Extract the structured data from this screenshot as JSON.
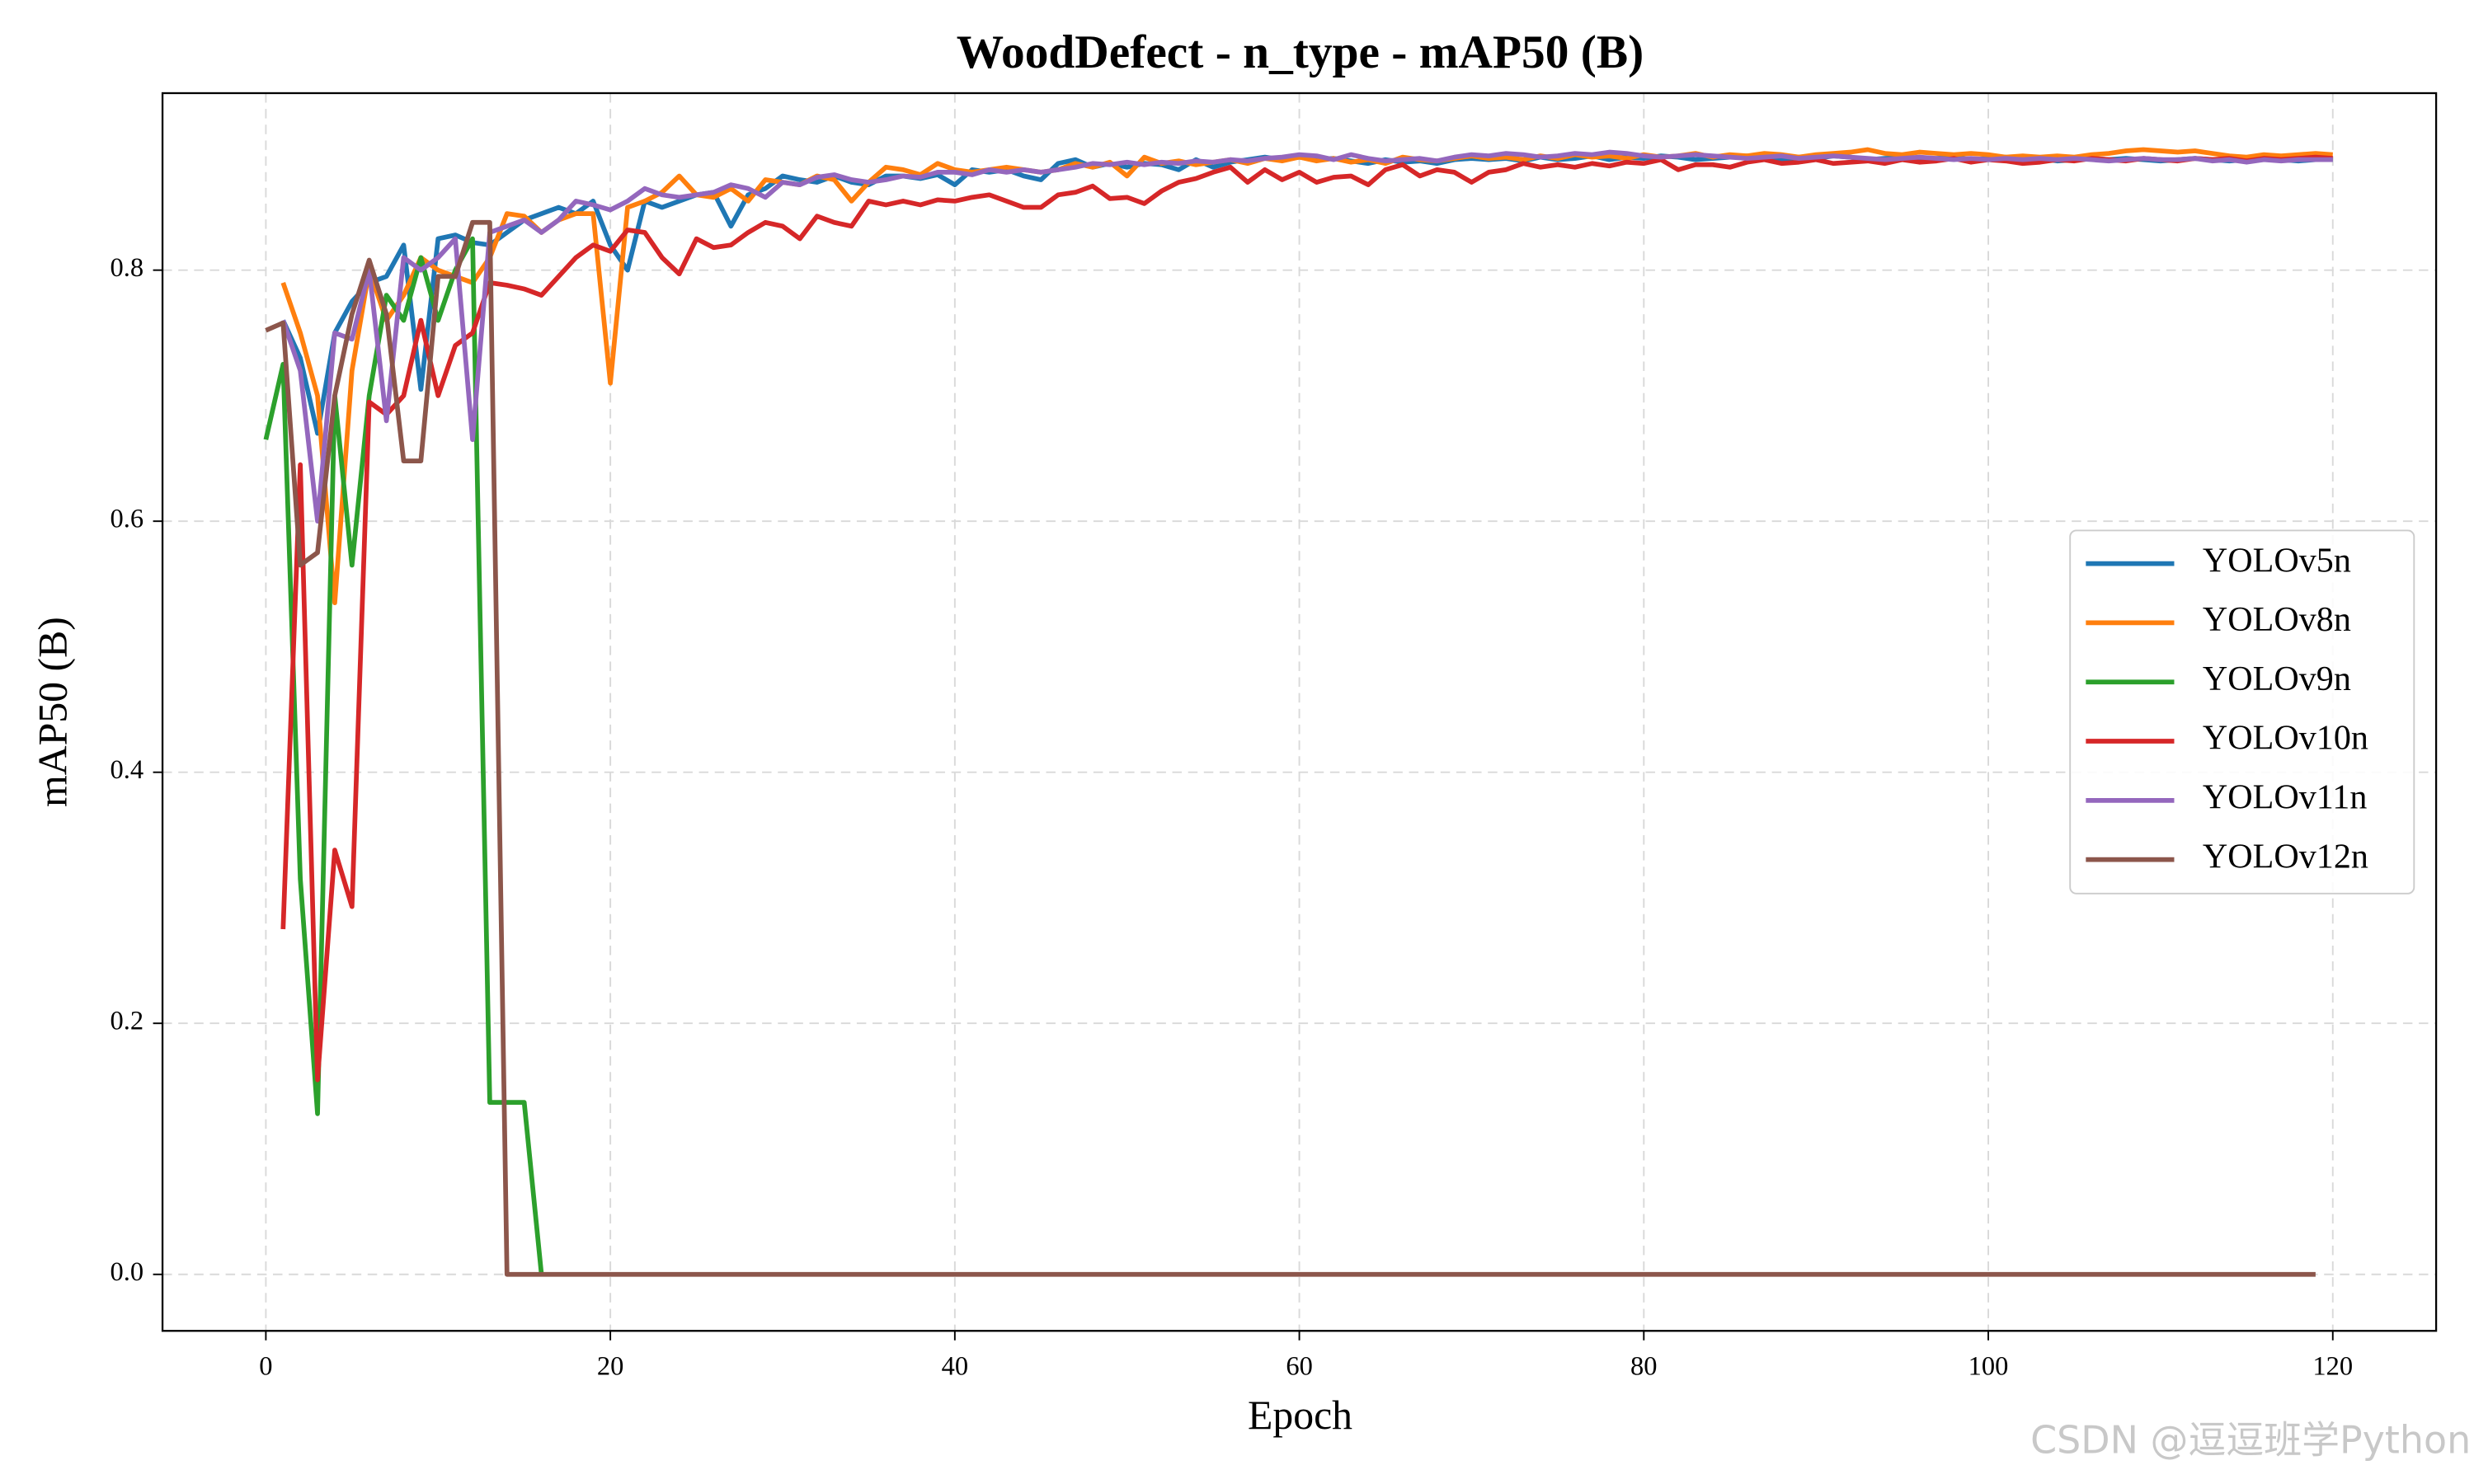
{
  "chart_data": {
    "type": "line",
    "title": "WoodDefect - n_type - mAP50 (B)",
    "xlabel": "Epoch",
    "ylabel": "mAP50 (B)",
    "watermark": "CSDN @逗逗班学Python",
    "xlim": [
      -6,
      126
    ],
    "xticks": [
      0,
      20,
      40,
      60,
      80,
      100,
      120
    ],
    "ylim": [
      -0.045,
      0.941
    ],
    "yticks": [
      {
        "value": 0,
        "label": "0.0"
      },
      0.2,
      0.4,
      0.6,
      0.8
    ],
    "grid": true,
    "legend": "center right",
    "x": [
      0,
      1,
      2,
      3,
      4,
      5,
      6,
      7,
      8,
      9,
      10,
      11,
      12,
      13,
      14,
      15,
      16,
      17,
      18,
      19,
      20,
      21,
      22,
      23,
      24,
      25,
      26,
      27,
      28,
      29,
      30,
      31,
      32,
      33,
      34,
      35,
      36,
      37,
      38,
      39,
      40,
      41,
      42,
      43,
      44,
      45,
      46,
      47,
      48,
      49,
      50,
      51,
      52,
      53,
      54,
      55,
      56,
      57,
      58,
      59,
      60,
      61,
      62,
      63,
      64,
      65,
      66,
      67,
      68,
      69,
      70,
      71,
      72,
      73,
      74,
      75,
      76,
      77,
      78,
      79,
      80,
      81,
      82,
      83,
      84,
      85,
      86,
      87,
      88,
      89,
      90,
      91,
      92,
      93,
      94,
      95,
      96,
      97,
      98,
      99,
      100,
      101,
      102,
      103,
      104,
      105,
      106,
      107,
      108,
      109,
      110,
      111,
      112,
      113,
      114,
      115,
      116,
      117,
      118,
      119,
      120
    ],
    "series": [
      {
        "name": "YOLOv5n",
        "color": "#1f77b4",
        "values": [
          null,
          0.76,
          0.73,
          0.67,
          0.75,
          0.775,
          0.79,
          0.795,
          0.82,
          0.705,
          0.825,
          0.828,
          0.822,
          0.82,
          0.83,
          0.84,
          0.845,
          0.85,
          0.845,
          0.855,
          0.82,
          0.8,
          0.855,
          0.85,
          0.855,
          0.86,
          0.862,
          0.835,
          0.86,
          0.865,
          0.875,
          0.872,
          0.87,
          0.875,
          0.87,
          0.868,
          0.875,
          0.875,
          0.873,
          0.876,
          0.868,
          0.88,
          0.878,
          0.88,
          0.875,
          0.872,
          0.885,
          0.888,
          0.882,
          0.885,
          0.882,
          0.885,
          0.884,
          0.88,
          0.888,
          0.882,
          0.886,
          0.888,
          0.89,
          0.888,
          0.89,
          0.888,
          0.889,
          0.887,
          0.885,
          0.888,
          0.886,
          0.887,
          0.885,
          0.888,
          0.889,
          0.888,
          0.889,
          0.887,
          0.89,
          0.888,
          0.889,
          0.891,
          0.888,
          0.89,
          0.889,
          0.891,
          0.89,
          0.888,
          0.889,
          0.89,
          0.891,
          0.889,
          0.888,
          0.89,
          0.889,
          0.891,
          0.89,
          0.888,
          0.889,
          0.89,
          0.888,
          0.889,
          0.89,
          0.888,
          0.889,
          0.89,
          0.888,
          0.889,
          0.887,
          0.888,
          0.889,
          0.888,
          0.889,
          0.888,
          0.887,
          0.888,
          0.889,
          0.888,
          0.887,
          0.888,
          0.889,
          0.888,
          0.887,
          0.888,
          0.888
        ]
      },
      {
        "name": "YOLOv8n",
        "color": "#ff7f0e",
        "values": [
          null,
          0.79,
          0.75,
          0.7,
          0.535,
          0.72,
          0.8,
          0.76,
          0.78,
          0.81,
          0.8,
          0.795,
          0.79,
          0.81,
          0.845,
          0.843,
          0.83,
          0.84,
          0.845,
          0.845,
          0.71,
          0.85,
          0.855,
          0.862,
          0.875,
          0.86,
          0.858,
          0.865,
          0.855,
          0.872,
          0.87,
          0.868,
          0.875,
          0.872,
          0.855,
          0.87,
          0.882,
          0.88,
          0.876,
          0.885,
          0.88,
          0.878,
          0.88,
          0.882,
          0.88,
          0.878,
          0.88,
          0.885,
          0.882,
          0.886,
          0.875,
          0.89,
          0.885,
          0.887,
          0.884,
          0.886,
          0.888,
          0.885,
          0.889,
          0.887,
          0.89,
          0.887,
          0.889,
          0.886,
          0.888,
          0.885,
          0.89,
          0.888,
          0.887,
          0.889,
          0.891,
          0.889,
          0.89,
          0.888,
          0.891,
          0.889,
          0.892,
          0.89,
          0.891,
          0.889,
          0.892,
          0.89,
          0.891,
          0.893,
          0.89,
          0.892,
          0.891,
          0.893,
          0.892,
          0.89,
          0.892,
          0.893,
          0.894,
          0.896,
          0.893,
          0.892,
          0.894,
          0.893,
          0.892,
          0.893,
          0.892,
          0.89,
          0.891,
          0.89,
          0.891,
          0.89,
          0.892,
          0.893,
          0.895,
          0.896,
          0.895,
          0.894,
          0.895,
          0.893,
          0.891,
          0.89,
          0.892,
          0.891,
          0.892,
          0.893,
          0.892
        ]
      },
      {
        "name": "YOLOv9n",
        "color": "#2ca02c",
        "values": [
          0.665,
          0.725,
          0.315,
          0.128,
          0.7,
          0.565,
          0.7,
          0.78,
          0.76,
          0.81,
          0.76,
          0.8,
          0.825,
          0.137,
          0.137,
          0.137,
          0.0,
          null,
          null,
          null,
          null,
          null,
          null,
          null,
          null,
          null,
          null,
          null,
          null,
          null,
          null,
          null,
          null,
          null,
          null,
          null,
          null,
          null,
          null,
          null,
          null,
          null,
          null,
          null,
          null,
          null,
          null,
          null,
          null,
          null,
          null,
          null,
          null,
          null,
          null,
          null,
          null,
          null,
          null,
          null,
          null,
          null,
          null,
          null,
          null,
          null,
          null,
          null,
          null,
          null,
          null,
          null,
          null,
          null,
          null,
          null,
          null,
          null,
          null,
          null,
          null,
          null,
          null,
          null,
          null,
          null,
          null,
          null,
          null,
          null,
          null,
          null,
          null,
          null,
          null,
          null,
          null,
          null,
          null,
          null,
          null,
          null,
          null,
          null,
          null,
          null,
          null,
          null,
          null,
          null,
          null,
          null,
          null,
          null,
          null,
          null,
          null,
          null,
          null,
          null,
          null
        ]
      },
      {
        "name": "YOLOv10n",
        "color": "#d62728",
        "values": [
          null,
          0.275,
          0.645,
          0.155,
          0.338,
          0.293,
          0.695,
          0.685,
          0.7,
          0.76,
          0.7,
          0.74,
          0.75,
          0.79,
          0.788,
          0.785,
          0.78,
          0.795,
          0.81,
          0.82,
          0.815,
          0.832,
          0.83,
          0.81,
          0.797,
          0.825,
          0.818,
          0.82,
          0.83,
          0.838,
          0.835,
          0.825,
          0.843,
          0.838,
          0.835,
          0.855,
          0.852,
          0.855,
          0.852,
          0.856,
          0.855,
          0.858,
          0.86,
          0.855,
          0.85,
          0.85,
          0.86,
          0.862,
          0.867,
          0.857,
          0.858,
          0.853,
          0.863,
          0.87,
          0.873,
          0.878,
          0.882,
          0.87,
          0.88,
          0.872,
          0.878,
          0.87,
          0.874,
          0.875,
          0.868,
          0.88,
          0.884,
          0.875,
          0.88,
          0.878,
          0.87,
          0.878,
          0.88,
          0.885,
          0.882,
          0.884,
          0.882,
          0.885,
          0.883,
          0.886,
          0.885,
          0.888,
          0.88,
          0.884,
          0.884,
          0.882,
          0.886,
          0.888,
          0.885,
          0.886,
          0.888,
          0.885,
          0.886,
          0.887,
          0.885,
          0.888,
          0.886,
          0.887,
          0.889,
          0.886,
          0.888,
          0.887,
          0.885,
          0.886,
          0.888,
          0.887,
          0.889,
          0.888,
          0.887,
          0.889,
          0.888,
          0.887,
          0.889,
          0.888,
          0.889,
          0.887,
          0.889,
          0.888,
          0.889,
          0.89,
          0.889
        ]
      },
      {
        "name": "YOLOv11n",
        "color": "#9467bd",
        "values": [
          null,
          0.76,
          0.72,
          0.6,
          0.75,
          0.745,
          0.8,
          0.68,
          0.81,
          0.8,
          0.81,
          0.825,
          0.665,
          0.83,
          0.835,
          0.84,
          0.83,
          0.84,
          0.855,
          0.852,
          0.848,
          0.855,
          0.865,
          0.86,
          0.858,
          0.86,
          0.862,
          0.868,
          0.865,
          0.858,
          0.87,
          0.868,
          0.874,
          0.876,
          0.872,
          0.87,
          0.872,
          0.875,
          0.874,
          0.878,
          0.878,
          0.876,
          0.88,
          0.878,
          0.88,
          0.878,
          0.88,
          0.882,
          0.885,
          0.884,
          0.886,
          0.884,
          0.886,
          0.885,
          0.887,
          0.886,
          0.888,
          0.887,
          0.889,
          0.89,
          0.892,
          0.891,
          0.888,
          0.892,
          0.889,
          0.887,
          0.888,
          0.889,
          0.887,
          0.89,
          0.892,
          0.891,
          0.893,
          0.892,
          0.89,
          0.891,
          0.893,
          0.892,
          0.894,
          0.893,
          0.891,
          0.89,
          0.891,
          0.892,
          0.891,
          0.89,
          0.889,
          0.89,
          0.891,
          0.889,
          0.89,
          0.891,
          0.89,
          0.889,
          0.888,
          0.889,
          0.89,
          0.889,
          0.888,
          0.889,
          0.888,
          0.889,
          0.888,
          0.889,
          0.888,
          0.889,
          0.888,
          0.887,
          0.888,
          0.889,
          0.888,
          0.888,
          0.889,
          0.887,
          0.888,
          0.886,
          0.888,
          0.887,
          0.888,
          0.888,
          0.888
        ]
      },
      {
        "name": "YOLOv12n",
        "color": "#8c564b",
        "values": [
          0.752,
          0.758,
          0.565,
          0.575,
          0.7,
          0.765,
          0.808,
          0.765,
          0.648,
          0.648,
          0.795,
          0.795,
          0.838,
          0.838,
          0.0,
          0,
          0,
          0,
          0,
          0,
          0,
          0,
          0,
          0,
          0,
          0,
          0,
          0,
          0,
          0,
          0,
          0,
          0,
          0,
          0,
          0,
          0,
          0,
          0,
          0,
          0,
          0,
          0,
          0,
          0,
          0,
          0,
          0,
          0,
          0,
          0,
          0,
          0,
          0,
          0,
          0,
          0,
          0,
          0,
          0,
          0,
          0,
          0,
          0,
          0,
          0,
          0,
          0,
          0,
          0,
          0,
          0,
          0,
          0,
          0,
          0,
          0,
          0,
          0,
          0,
          0,
          0,
          0,
          0,
          0,
          0,
          0,
          0,
          0,
          0,
          0,
          0,
          0,
          0,
          0,
          0,
          0,
          0,
          0,
          0,
          0,
          0,
          0,
          0,
          0,
          0,
          0,
          0,
          0,
          0,
          0,
          0,
          0,
          0,
          0,
          0,
          0,
          0,
          0,
          0,
          null
        ]
      }
    ]
  }
}
